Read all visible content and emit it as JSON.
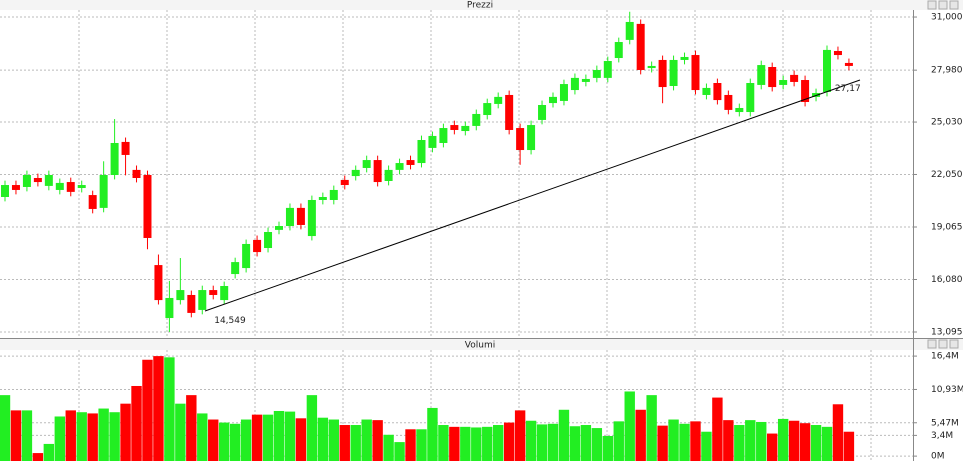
{
  "chart_data": [
    {
      "type": "candlestick",
      "title": "Prezzi",
      "up_color": "#22ee22",
      "down_color": "#ff0000",
      "open": [
        20.77,
        21.45,
        21.34,
        21.85,
        21.4,
        21.17,
        21.62,
        21.28,
        20.88,
        20.15,
        22.02,
        23.9,
        22.31,
        22.02,
        16.9,
        13.89,
        14.91,
        15.2,
        14.35,
        15.48,
        14.91,
        16.39,
        16.73,
        18.33,
        17.87,
        18.9,
        19.12,
        20.15,
        18.55,
        20.6,
        20.6,
        21.74,
        21.96,
        22.42,
        22.87,
        21.68,
        22.31,
        22.87,
        22.7,
        23.56,
        23.84,
        24.86,
        24.52,
        24.81,
        25.43,
        26.06,
        26.57,
        24.69,
        23.44,
        25.15,
        26.11,
        26.23,
        26.85,
        27.31,
        27.54,
        27.54,
        28.67,
        29.7,
        30.61,
        28.1,
        28.56,
        27.08,
        28.56,
        28.84,
        26.57,
        27.25,
        26.57,
        25.6,
        25.6,
        27.14,
        28.16,
        27.14,
        27.71,
        27.42,
        26.46,
        26.74,
        29.07,
        28.39
      ],
      "high": [
        21.7,
        21.7,
        22.27,
        22.1,
        22.27,
        21.82,
        21.87,
        21.7,
        21.13,
        22.8,
        25.2,
        24.15,
        22.56,
        22.27,
        17.5,
        16.0,
        17.3,
        15.45,
        15.73,
        15.73,
        15.96,
        17.32,
        18.35,
        18.58,
        19.03,
        19.37,
        20.4,
        20.4,
        20.85,
        21.02,
        21.42,
        21.99,
        22.56,
        23.12,
        23.12,
        22.56,
        22.95,
        23.12,
        24.26,
        24.49,
        24.94,
        25.11,
        25.06,
        25.74,
        26.36,
        26.71,
        26.82,
        24.94,
        25.11,
        26.25,
        26.71,
        27.44,
        27.79,
        27.73,
        28.24,
        28.75,
        29.83,
        31.3,
        30.86,
        28.47,
        28.81,
        28.81,
        28.98,
        29.09,
        27.22,
        27.5,
        26.82,
        26.08,
        27.5,
        28.52,
        28.41,
        27.67,
        27.96,
        27.67,
        26.93,
        29.38,
        29.32,
        28.64
      ],
      "low": [
        20.52,
        20.92,
        21.09,
        21.37,
        21.15,
        20.92,
        20.81,
        21.03,
        19.84,
        19.9,
        21.77,
        22.0,
        21.6,
        17.8,
        14.66,
        13.1,
        14.66,
        13.93,
        14.1,
        14.95,
        14.66,
        16.14,
        16.48,
        17.39,
        17.62,
        18.65,
        18.87,
        18.93,
        18.3,
        20.35,
        20.35,
        21.2,
        21.71,
        22.17,
        21.37,
        21.43,
        22.06,
        22.34,
        22.45,
        23.31,
        23.59,
        24.33,
        24.27,
        24.56,
        25.18,
        25.81,
        24.33,
        22.6,
        23.19,
        24.9,
        25.86,
        25.98,
        26.6,
        27.06,
        27.29,
        27.29,
        28.42,
        29.45,
        27.74,
        27.85,
        26.1,
        26.83,
        28.31,
        26.6,
        26.32,
        26.03,
        25.47,
        25.35,
        25.35,
        26.89,
        26.77,
        26.89,
        27.06,
        25.92,
        26.21,
        26.49,
        28.59,
        27.97
      ],
      "close": [
        21.45,
        21.17,
        22.02,
        21.62,
        22.02,
        21.57,
        21.06,
        21.45,
        20.09,
        22.02,
        23.84,
        23.16,
        21.85,
        18.44,
        14.91,
        15.03,
        15.48,
        14.18,
        15.48,
        15.2,
        15.71,
        17.07,
        18.1,
        17.64,
        18.78,
        19.12,
        20.15,
        19.18,
        20.6,
        20.77,
        21.17,
        21.45,
        22.31,
        22.87,
        21.62,
        22.31,
        22.7,
        22.59,
        24.01,
        24.24,
        24.69,
        24.58,
        24.81,
        25.49,
        26.11,
        26.46,
        24.58,
        23.44,
        24.86,
        26.0,
        26.46,
        27.19,
        27.54,
        27.48,
        27.99,
        28.5,
        29.58,
        30.72,
        27.99,
        28.22,
        27.02,
        28.56,
        28.73,
        26.85,
        26.97,
        26.28,
        25.72,
        25.83,
        27.25,
        28.27,
        27.02,
        27.42,
        27.31,
        26.17,
        26.68,
        29.13,
        28.84,
        28.22
      ],
      "ylim": [
        12.925,
        31.4
      ],
      "yticks": [
        {
          "value": 31,
          "label": "31,000"
        },
        {
          "value": 27.98,
          "label": "27,980"
        },
        {
          "value": 25.03,
          "label": "25,030"
        },
        {
          "value": 22.05,
          "label": "22,050"
        },
        {
          "value": 19.065,
          "label": "19,065"
        },
        {
          "value": 16.08,
          "label": "16,080"
        },
        {
          "value": 13.095,
          "label": "13,095"
        }
      ],
      "annotations": [
        {
          "value": 14.549,
          "label": "14,549"
        },
        {
          "value": 27.17,
          "label": "27,17"
        }
      ],
      "grid": true
    },
    {
      "type": "bar",
      "title": "Volumi",
      "values": [
        10,
        7.5,
        7.5,
        0.5,
        2,
        6.5,
        7.5,
        7.2,
        7,
        7.8,
        7.2,
        8.6,
        11.5,
        15.8,
        16.4,
        16.2,
        8.6,
        10,
        7,
        6,
        5.5,
        5.3,
        6,
        6.8,
        6.8,
        7.4,
        7.3,
        6.2,
        10,
        6.3,
        6,
        5.1,
        5.1,
        6,
        5.9,
        3.5,
        2.3,
        4.4,
        4.4,
        7.9,
        5.1,
        4.8,
        4.8,
        4.7,
        4.8,
        5.1,
        5.5,
        7.5,
        5.8,
        5.2,
        5.3,
        7.6,
        4.9,
        5.1,
        4.6,
        3.3,
        5.7,
        10.6,
        7.6,
        10,
        5,
        6,
        5.3,
        5.7,
        4,
        9.6,
        5.9,
        5.1,
        5.9,
        5.6,
        3.7,
        6.1,
        5.8,
        5.4,
        5.1,
        4.8,
        8.5,
        4
      ],
      "ylim": [
        -0.8,
        17.4
      ],
      "yticks": [
        {
          "value": 16.4,
          "label": "16,4M"
        },
        {
          "value": 10.93,
          "label": "10,93M"
        },
        {
          "value": 5.47,
          "label": "5,47M"
        },
        {
          "value": 3.4,
          "label": "3,4M"
        },
        {
          "value": 0,
          "label": "0M"
        }
      ],
      "grid": true
    }
  ]
}
